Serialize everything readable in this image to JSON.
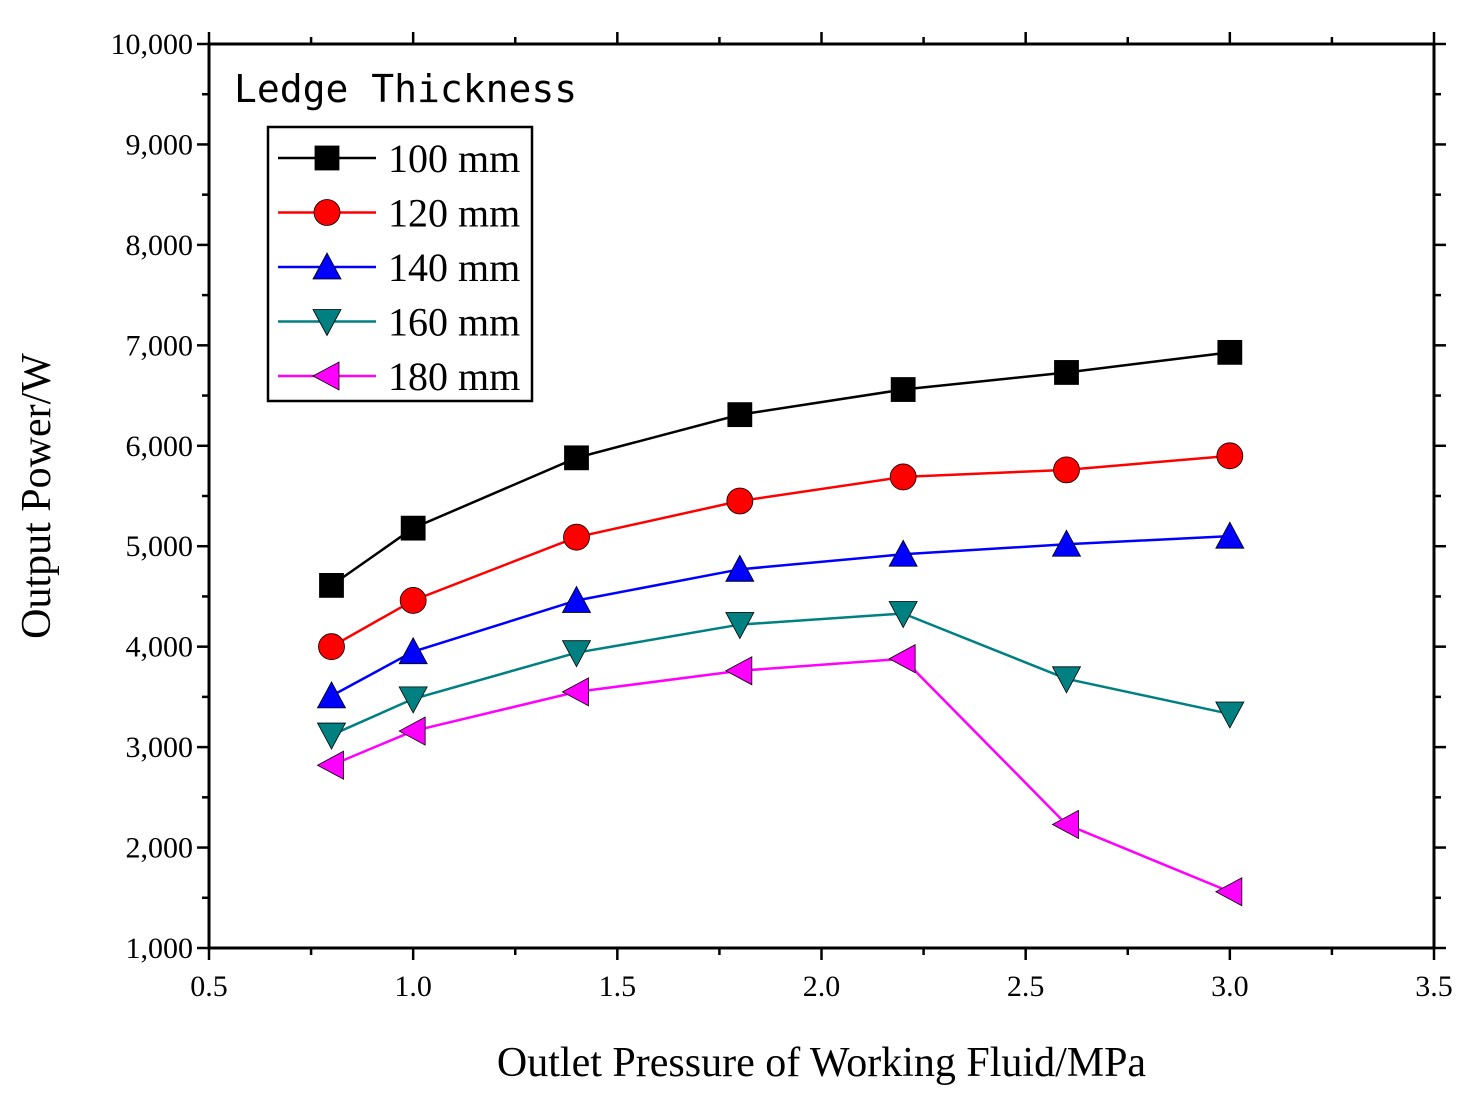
{
  "chart_data": {
    "type": "line",
    "title": "",
    "xlabel": "Outlet Pressure of Working Fluid/MPa",
    "ylabel": "Output Power/W",
    "xlim": [
      0.5,
      3.5
    ],
    "ylim": [
      1000,
      10000
    ],
    "x_ticks": [
      0.5,
      1.0,
      1.5,
      2.0,
      2.5,
      3.0,
      3.5
    ],
    "x_tick_labels": [
      "0.5",
      "1.0",
      "1.5",
      "2.0",
      "2.5",
      "3.0",
      "3.5"
    ],
    "y_ticks": [
      1000,
      2000,
      3000,
      4000,
      5000,
      6000,
      7000,
      8000,
      9000,
      10000
    ],
    "y_tick_labels": [
      "1,000",
      "2,000",
      "3,000",
      "4,000",
      "5,000",
      "6,000",
      "7,000",
      "8,000",
      "9,000",
      "10,000"
    ],
    "grid": false,
    "legend_title": "Ledge Thickness",
    "legend_position": "top-left",
    "x": [
      0.8,
      1.0,
      1.4,
      1.8,
      2.2,
      2.6,
      3.0
    ],
    "series": [
      {
        "name": "100 mm",
        "color": "#000000",
        "marker": "square",
        "values": [
          4610,
          5180,
          5880,
          6310,
          6560,
          6730,
          6930
        ]
      },
      {
        "name": "120 mm",
        "color": "#ff0000",
        "marker": "circle",
        "values": [
          4000,
          4460,
          5090,
          5450,
          5690,
          5760,
          5900
        ]
      },
      {
        "name": "140 mm",
        "color": "#0000ff",
        "marker": "triangle-up",
        "values": [
          3510,
          3950,
          4460,
          4770,
          4920,
          5020,
          5100
        ]
      },
      {
        "name": "160 mm",
        "color": "#008080",
        "marker": "triangle-down",
        "values": [
          3120,
          3480,
          3940,
          4220,
          4330,
          3680,
          3330
        ]
      },
      {
        "name": "180 mm",
        "color": "#ff00ff",
        "marker": "triangle-left",
        "values": [
          2820,
          3160,
          3550,
          3760,
          3880,
          2230,
          1560
        ]
      }
    ]
  }
}
